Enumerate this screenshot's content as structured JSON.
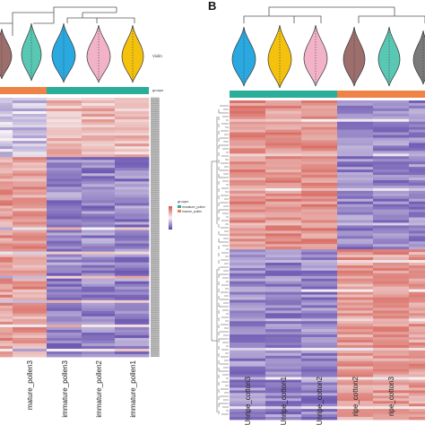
{
  "figure": {
    "panel_b_label": "B",
    "panel_a": {
      "violin_label": "Violin",
      "groups_label": "groups",
      "legend": {
        "title": "groups",
        "entries": [
          {
            "label": "immature_pollen",
            "color": "#2aae99"
          },
          {
            "label": "mature_pollen",
            "color": "#ef8347"
          }
        ]
      },
      "columns": [
        {
          "label": "mature_pollen3",
          "group": "mature_pollen"
        },
        {
          "label": "immature_pollen3",
          "group": "immature_pollen"
        },
        {
          "label": "immature_pollen2",
          "group": "immature_pollen"
        },
        {
          "label": "immature_pollen1",
          "group": "immature_pollen"
        }
      ]
    },
    "panel_b": {
      "group_colors": [
        "#2aae99",
        "#ef8347"
      ],
      "columns": [
        {
          "label": "Unripe_cotton3",
          "group": "unripe"
        },
        {
          "label": "Unripe_cotton1",
          "group": "unripe"
        },
        {
          "label": "Unripe_cotton2",
          "group": "unripe"
        },
        {
          "label": "ripe_cotton2",
          "group": "ripe"
        },
        {
          "label": "ripe_cotton3",
          "group": "ripe"
        }
      ]
    },
    "colors": {
      "high": "#d4564b",
      "mid": "#f7f3f5",
      "low": "#5a43a9",
      "violin_pink": "#f2b3c8",
      "violin_teal": "#58c7b3",
      "violin_blue": "#29a9e0",
      "violin_yellow": "#f4c20d",
      "violin_brown": "#9c6e6c",
      "violin_gray": "#7a7a7a"
    }
  }
}
